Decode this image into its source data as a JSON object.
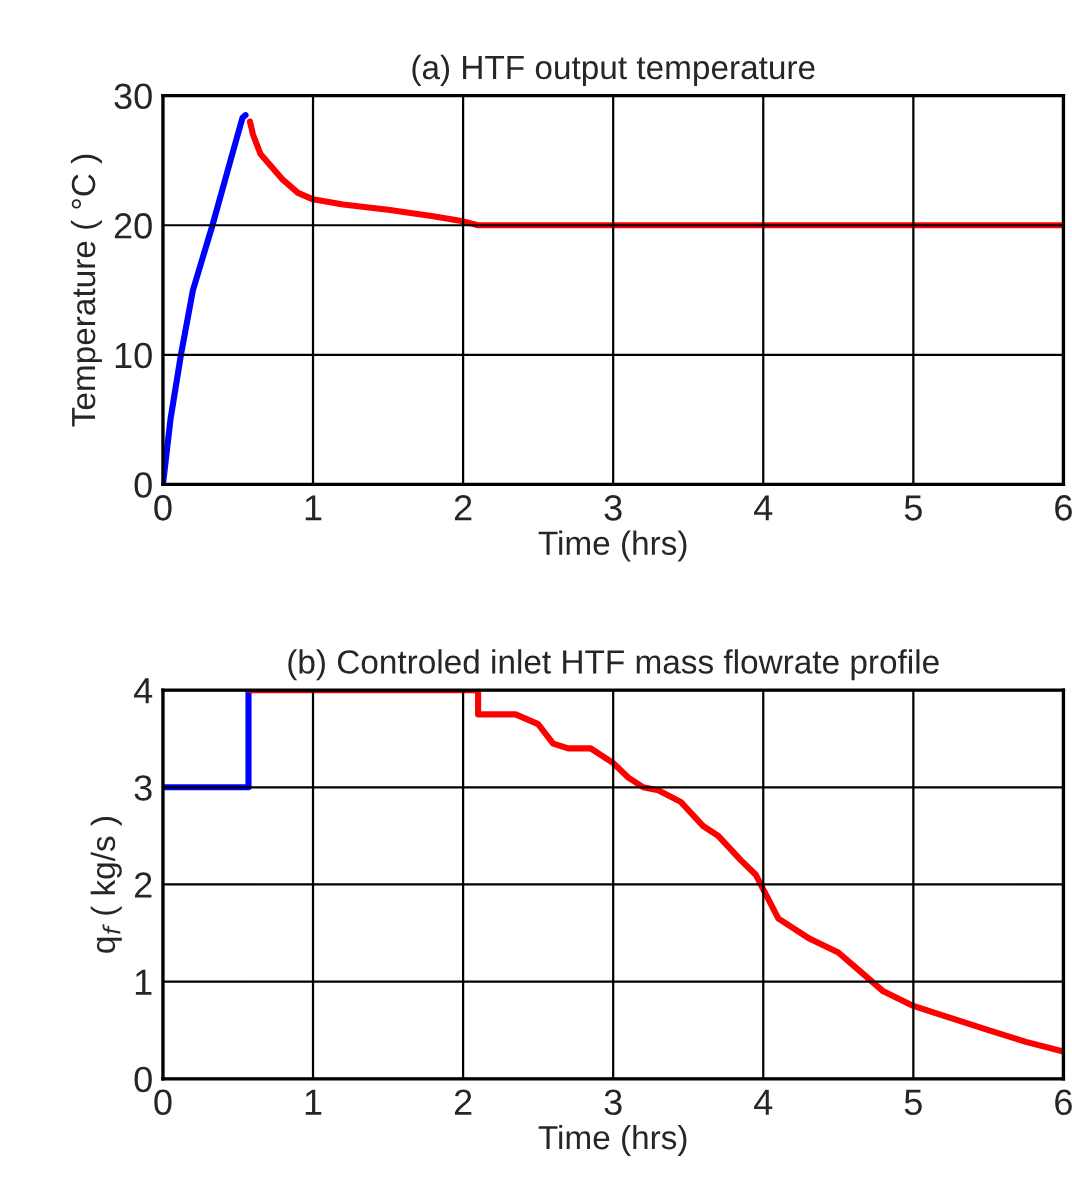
{
  "chart_data": [
    {
      "type": "line",
      "title": "(a) HTF output temperature",
      "xlabel": "Time (hrs)",
      "ylabel": "Temperature ( °C )",
      "xlim": [
        0,
        6
      ],
      "xticks": [
        0,
        1,
        2,
        3,
        4,
        5,
        6
      ],
      "ylim": [
        0,
        30
      ],
      "yticks": [
        0,
        10,
        20,
        30
      ],
      "grid": true,
      "legend": false,
      "series": [
        {
          "color": "#0000ff",
          "x": [
            0,
            0.05,
            0.12,
            0.2,
            0.33,
            0.45,
            0.53,
            0.55
          ],
          "values": [
            0,
            5,
            10,
            15,
            20,
            25,
            28.3,
            28.5
          ]
        },
        {
          "color": "#ff0000",
          "x": [
            0.58,
            0.6,
            0.65,
            0.8,
            0.9,
            1.0,
            1.2,
            1.5,
            1.8,
            2.0,
            2.1,
            6
          ],
          "values": [
            28,
            27,
            25.5,
            23.5,
            22.5,
            22,
            21.6,
            21.2,
            20.7,
            20.3,
            20,
            20
          ]
        }
      ]
    },
    {
      "type": "line",
      "title": "(b) Controled inlet HTF mass flowrate profile",
      "xlabel": "Time (hrs)",
      "ylabel": "q$_{f}$ ( kg/s )",
      "xlim": [
        0,
        6
      ],
      "xticks": [
        0,
        1,
        2,
        3,
        4,
        5,
        6
      ],
      "ylim": [
        0,
        4
      ],
      "yticks": [
        0,
        1,
        2,
        3,
        4
      ],
      "grid": true,
      "legend": false,
      "series": [
        {
          "color": "#0000ff",
          "x": [
            0,
            0.57,
            0.57
          ],
          "values": [
            3,
            3,
            4
          ]
        },
        {
          "color": "#ff0000",
          "x": [
            0.58,
            2.1,
            2.1,
            2.35,
            2.5,
            2.6,
            2.7,
            2.85,
            3.0,
            3.1,
            3.2,
            3.3,
            3.45,
            3.6,
            3.7,
            3.85,
            3.95,
            4.0,
            4.1,
            4.3,
            4.5,
            4.65,
            4.8,
            5.0,
            5.2,
            5.5,
            5.75,
            6
          ],
          "values": [
            4,
            4,
            3.75,
            3.75,
            3.65,
            3.45,
            3.4,
            3.4,
            3.25,
            3.1,
            3.0,
            2.97,
            2.85,
            2.6,
            2.5,
            2.25,
            2.1,
            1.95,
            1.65,
            1.45,
            1.3,
            1.1,
            0.9,
            0.75,
            0.65,
            0.5,
            0.38,
            0.28
          ]
        }
      ]
    }
  ]
}
